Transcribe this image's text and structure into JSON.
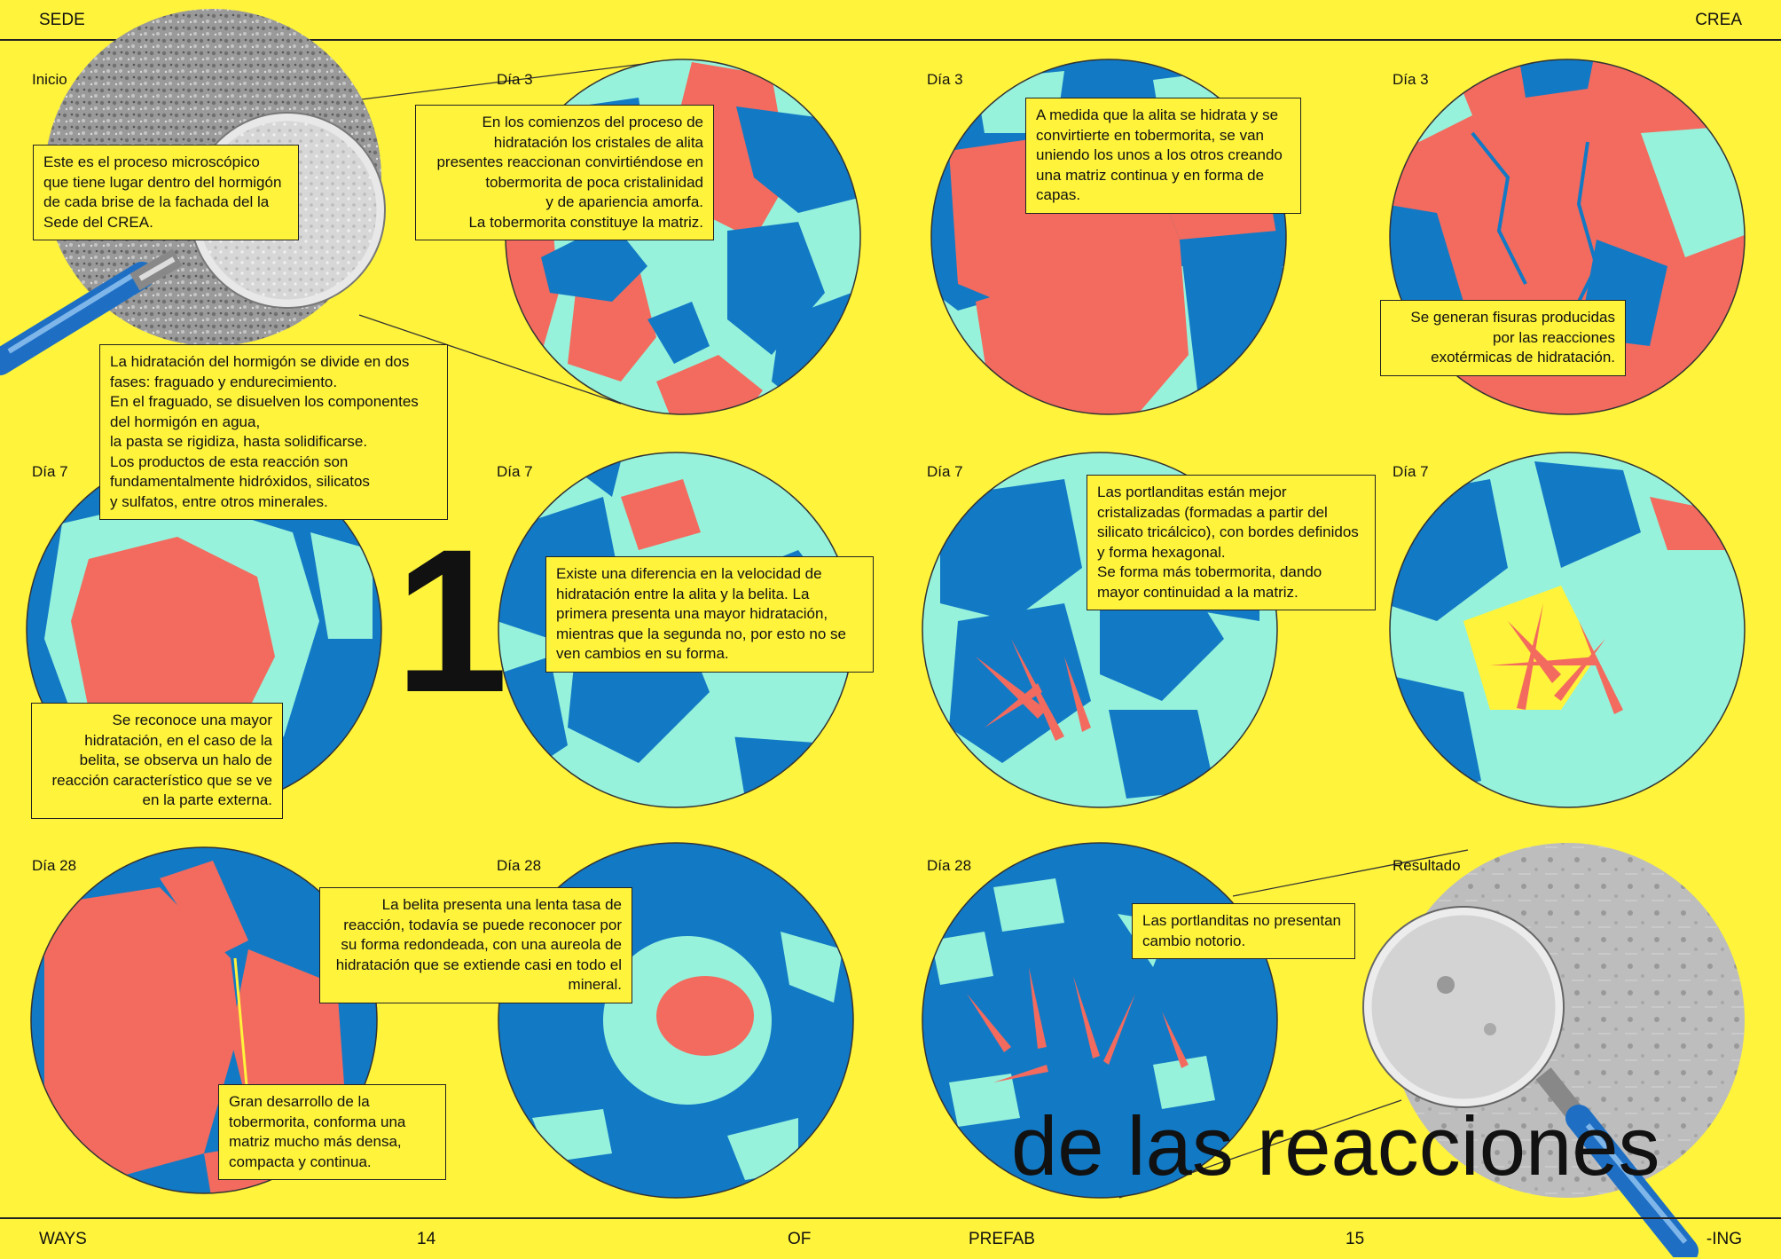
{
  "header": {
    "left": "SEDE",
    "right": "CREA"
  },
  "footer": {
    "ways": "WAYS",
    "page_left": "14",
    "of": "OF",
    "prefab": "PREFAB",
    "page_right": "15",
    "ing": "-ING"
  },
  "big_number": "1",
  "title": "de las reacciones",
  "labels": {
    "inicio": "Inicio",
    "r1c2": "Día 3",
    "r1c3": "Día 3",
    "r1c4": "Día 3",
    "r2c1": "Día 7",
    "r2c2": "Día 7",
    "r2c3": "Día 7",
    "r2c4": "Día 7",
    "r3c1": "Día 28",
    "r3c2": "Día 28",
    "r3c3": "Día 28",
    "resultado": "Resultado"
  },
  "boxes": {
    "inicio": "Este es el proceso microscópico que tiene lugar dentro del hormigón de cada brise de la fachada del la Sede del CREA.",
    "fases": "La hidratación del hormigón se divide en dos fases: fraguado y endurecimiento.\nEn el fraguado, se disuelven los componentes del hormigón en agua,\nla pasta se rigidiza, hasta solidificarse.\nLos productos de esta reacción son fundamentalmente hidróxidos, silicatos\ny sulfatos, entre otros minerales.",
    "dia3a": "En los comienzos del proceso de hidratación los cristales de alita presentes reaccionan convirtiéndose en tobermorita de poca cristalinidad\ny de apariencia amorfa.\nLa tobermorita constituye la matriz.",
    "dia3b": "A medida que la alita se hidrata y se convirtierte en tobermorita, se van uniendo los unos a los otros creando una matriz continua y en forma de capas.",
    "dia3c": "Se generan fisuras producidas\npor las reacciones\nexotérmicas de hidratación.",
    "dia7halo": "Se reconoce una mayor hidratación, en el caso de la belita, se observa un halo de reacción característico que se ve en la parte externa.",
    "dia7vel": "Existe una diferencia en la velocidad de hidratación entre la alita y la belita. La primera presenta una mayor hidratación, mientras que la segunda no, por esto no se ven cambios en su forma.",
    "dia7port": "Las portlanditas están mejor cristalizadas (formadas a partir del silicato tricálcico), con bordes definidos y forma hexagonal.\nSe forma más tobermorita, dando mayor continuidad a la matriz.",
    "dia28belita": "La belita presenta una lenta tasa de reacción, todavía se puede reconocer por su forma redondeada, con una aureola de hidratación que se extiende casi en todo el mineral.",
    "dia28tob": "Gran desarrollo de la tobermorita, conforma una matriz mucho más densa, compacta y continua.",
    "dia28port": "Las portlanditas no presentan cambio notorio."
  },
  "colors": {
    "background": "#FFF33B",
    "blue": "#1279C5",
    "coral": "#F26B5E",
    "mint": "#97F2DB",
    "ink": "#111111"
  }
}
